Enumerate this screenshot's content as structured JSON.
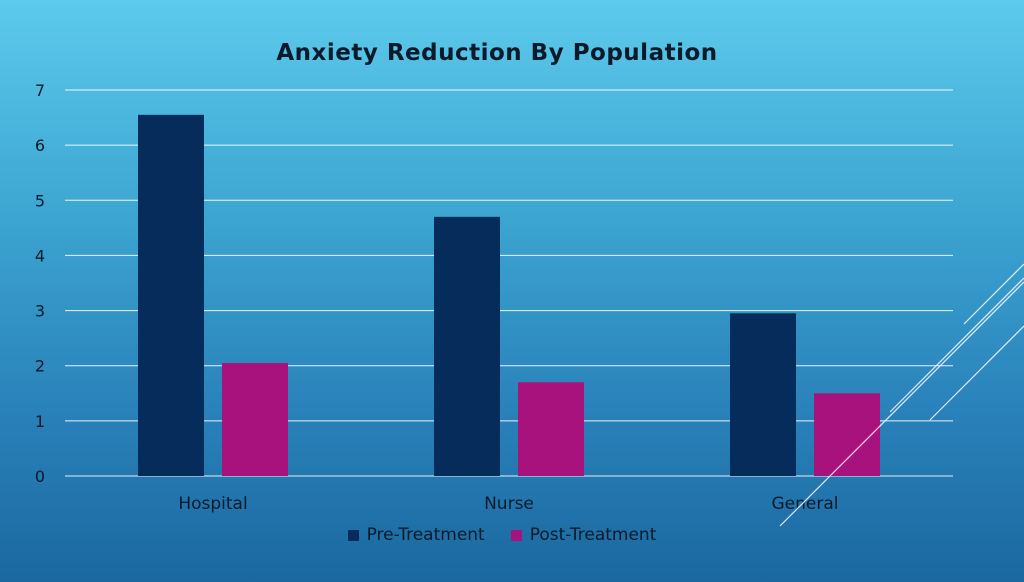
{
  "chart_data": {
    "type": "bar",
    "title": "Anxiety Reduction By Population",
    "categories": [
      "Hospital",
      "Nurse",
      "General"
    ],
    "series": [
      {
        "name": "Pre-Treatment",
        "values": [
          6.55,
          4.7,
          2.95
        ],
        "color": "#062c5c"
      },
      {
        "name": "Post-Treatment",
        "values": [
          2.05,
          1.7,
          1.5
        ],
        "color": "#a8127c"
      }
    ],
    "ylim": [
      0,
      7
    ],
    "yticks": [
      "0",
      "1",
      "2",
      "3",
      "4",
      "5",
      "6",
      "7"
    ],
    "grid": true,
    "legend_position": "bottom"
  }
}
